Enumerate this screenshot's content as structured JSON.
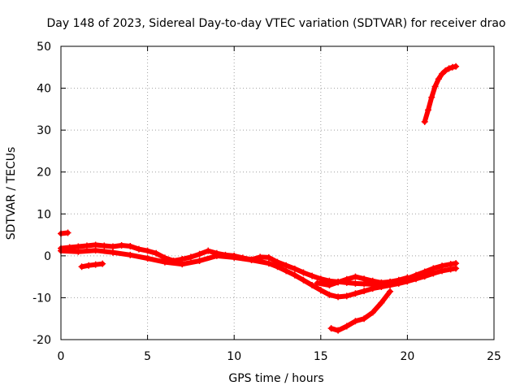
{
  "chart_data": {
    "type": "scatter",
    "title": "Day 148 of 2023, Sidereal Day-to-day VTEC variation (SDTVAR) for receiver drao",
    "xlabel": "GPS time / hours",
    "ylabel": "SDTVAR / TECUs",
    "xlim": [
      0,
      25
    ],
    "ylim": [
      -20,
      50
    ],
    "xticks": [
      0,
      5,
      10,
      15,
      20,
      25
    ],
    "yticks": [
      -20,
      -10,
      0,
      10,
      20,
      30,
      40,
      50
    ],
    "grid": true,
    "series_color": "#ff0000",
    "series": [
      {
        "name": "trace-short-start",
        "x": [
          0.0,
          0.4
        ],
        "y": [
          5.3,
          5.5
        ]
      },
      {
        "name": "trace-early-offset",
        "x": [
          1.2,
          1.6,
          2.0,
          2.4
        ],
        "y": [
          -2.6,
          -2.3,
          -2.1,
          -1.9
        ]
      },
      {
        "name": "trace-main-upper",
        "x": [
          0.0,
          0.5,
          1.0,
          1.5,
          2.0,
          2.5,
          3.0,
          3.5,
          4.0,
          4.5,
          5.0,
          5.5,
          6.0,
          6.5,
          7.0,
          7.5,
          8.0,
          8.5,
          9.0,
          9.5,
          10.0,
          10.5,
          11.0,
          11.5,
          12.0,
          12.5,
          13.0,
          13.5,
          14.0,
          14.5,
          15.0,
          15.5,
          16.0,
          16.5,
          17.0,
          17.5,
          18.0,
          18.5,
          19.0,
          19.5,
          20.0,
          20.5,
          21.0,
          21.5,
          22.0,
          22.5,
          22.8
        ],
        "y": [
          1.8,
          2.0,
          2.2,
          2.4,
          2.6,
          2.4,
          2.2,
          2.5,
          2.3,
          1.6,
          1.2,
          0.6,
          -0.5,
          -1.2,
          -0.8,
          -0.3,
          0.4,
          1.2,
          0.6,
          0.2,
          0.0,
          -0.5,
          -0.9,
          -0.3,
          -0.4,
          -1.5,
          -2.3,
          -3.1,
          -4.0,
          -4.8,
          -5.5,
          -6.0,
          -6.2,
          -6.4,
          -6.6,
          -6.7,
          -6.8,
          -6.6,
          -6.3,
          -5.9,
          -5.4,
          -4.6,
          -3.8,
          -3.0,
          -2.4,
          -2.0,
          -1.8
        ]
      },
      {
        "name": "trace-main-lower",
        "x": [
          0.0,
          1.0,
          2.0,
          3.0,
          4.0,
          5.0,
          6.0,
          7.0,
          8.0,
          9.0,
          10.0,
          11.0,
          12.0,
          12.5,
          13.0,
          13.5,
          14.0,
          14.5,
          15.0,
          15.5,
          16.0,
          16.5,
          17.0,
          17.5,
          18.0,
          18.5,
          19.0,
          19.5,
          20.0,
          20.5,
          21.0,
          21.5,
          22.0,
          22.5,
          22.8
        ],
        "y": [
          1.2,
          1.0,
          1.3,
          0.8,
          0.2,
          -0.6,
          -1.5,
          -2.0,
          -1.2,
          0.0,
          -0.4,
          -1.0,
          -1.8,
          -2.6,
          -3.6,
          -4.6,
          -5.8,
          -7.0,
          -8.2,
          -9.3,
          -9.8,
          -9.6,
          -9.0,
          -8.4,
          -7.8,
          -7.4,
          -7.0,
          -6.6,
          -6.1,
          -5.5,
          -4.9,
          -4.2,
          -3.6,
          -3.2,
          -3.0
        ]
      },
      {
        "name": "trace-mid-branch",
        "x": [
          14.8,
          15.5,
          16.0,
          16.5,
          17.0,
          17.5,
          18.0,
          18.5,
          19.0,
          19.5,
          20.0
        ],
        "y": [
          -6.5,
          -7.0,
          -6.3,
          -5.6,
          -5.0,
          -5.5,
          -6.0,
          -6.4,
          -6.2,
          -5.8,
          -5.2
        ]
      },
      {
        "name": "trace-descending",
        "x": [
          15.6,
          16.0,
          16.5,
          17.0,
          17.5,
          18.0,
          18.5,
          19.0
        ],
        "y": [
          -17.3,
          -17.8,
          -16.8,
          -15.6,
          -15.0,
          -13.5,
          -11.2,
          -8.5
        ]
      },
      {
        "name": "trace-high",
        "x": [
          21.0,
          21.2,
          21.4,
          21.6,
          21.8,
          22.0,
          22.2,
          22.4,
          22.6,
          22.8
        ],
        "y": [
          32.0,
          34.8,
          37.8,
          40.4,
          42.2,
          43.4,
          44.2,
          44.7,
          45.0,
          45.2
        ]
      }
    ]
  }
}
